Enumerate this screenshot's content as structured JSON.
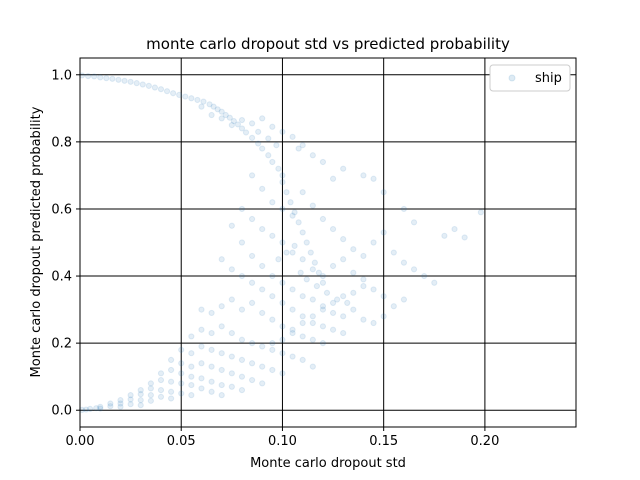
{
  "chart_data": {
    "type": "scatter",
    "title": "monte carlo dropout std vs predicted probability",
    "xlabel": "Monte carlo dropout std",
    "ylabel": "Monte carlo dropout predicted probability",
    "xlim": [
      0.0,
      0.245
    ],
    "ylim": [
      -0.05,
      1.05
    ],
    "xticks": [
      0.0,
      0.05,
      0.1,
      0.15,
      0.2
    ],
    "xtick_labels": [
      "0.00",
      "0.05",
      "0.10",
      "0.15",
      "0.20"
    ],
    "yticks": [
      0.0,
      0.2,
      0.4,
      0.6,
      0.8,
      1.0
    ],
    "ytick_labels": [
      "0.0",
      "0.2",
      "0.4",
      "0.6",
      "0.8",
      "1.0"
    ],
    "grid": true,
    "legend_position": "top-right",
    "series": [
      {
        "name": "ship",
        "color": "#1f77b4",
        "marker_alpha": 0.12,
        "points": [
          [
            0.001,
            0.998
          ],
          [
            0.004,
            0.996
          ],
          [
            0.007,
            0.995
          ],
          [
            0.01,
            0.992
          ],
          [
            0.013,
            0.99
          ],
          [
            0.016,
            0.988
          ],
          [
            0.019,
            0.985
          ],
          [
            0.022,
            0.982
          ],
          [
            0.025,
            0.979
          ],
          [
            0.028,
            0.975
          ],
          [
            0.031,
            0.971
          ],
          [
            0.034,
            0.967
          ],
          [
            0.037,
            0.962
          ],
          [
            0.04,
            0.957
          ],
          [
            0.043,
            0.951
          ],
          [
            0.046,
            0.945
          ],
          [
            0.049,
            0.94
          ],
          [
            0.052,
            0.935
          ],
          [
            0.055,
            0.93
          ],
          [
            0.058,
            0.925
          ],
          [
            0.061,
            0.92
          ],
          [
            0.064,
            0.912
          ],
          [
            0.066,
            0.905
          ],
          [
            0.068,
            0.897
          ],
          [
            0.07,
            0.89
          ],
          [
            0.072,
            0.88
          ],
          [
            0.074,
            0.872
          ],
          [
            0.076,
            0.862
          ],
          [
            0.078,
            0.852
          ],
          [
            0.08,
            0.84
          ],
          [
            0.082,
            0.828
          ],
          [
            0.085,
            0.812
          ],
          [
            0.088,
            0.795
          ],
          [
            0.09,
            0.78
          ],
          [
            0.093,
            0.76
          ],
          [
            0.095,
            0.74
          ],
          [
            0.098,
            0.72
          ],
          [
            0.1,
            0.7
          ],
          [
            0.06,
            0.905
          ],
          [
            0.065,
            0.88
          ],
          [
            0.07,
            0.87
          ],
          [
            0.075,
            0.85
          ],
          [
            0.08,
            0.865
          ],
          [
            0.085,
            0.855
          ],
          [
            0.09,
            0.87
          ],
          [
            0.095,
            0.845
          ],
          [
            0.1,
            0.83
          ],
          [
            0.105,
            0.815
          ],
          [
            0.11,
            0.79
          ],
          [
            0.088,
            0.83
          ],
          [
            0.093,
            0.81
          ],
          [
            0.097,
            0.79
          ],
          [
            0.1,
            0.68
          ],
          [
            0.102,
            0.65
          ],
          [
            0.104,
            0.62
          ],
          [
            0.106,
            0.59
          ],
          [
            0.108,
            0.56
          ],
          [
            0.11,
            0.53
          ],
          [
            0.112,
            0.5
          ],
          [
            0.114,
            0.47
          ],
          [
            0.116,
            0.44
          ],
          [
            0.118,
            0.41
          ],
          [
            0.12,
            0.38
          ],
          [
            0.085,
            0.7
          ],
          [
            0.09,
            0.66
          ],
          [
            0.095,
            0.62
          ],
          [
            0.1,
            0.6
          ],
          [
            0.105,
            0.58
          ],
          [
            0.11,
            0.65
          ],
          [
            0.115,
            0.61
          ],
          [
            0.12,
            0.57
          ],
          [
            0.125,
            0.54
          ],
          [
            0.13,
            0.51
          ],
          [
            0.135,
            0.48
          ],
          [
            0.14,
            0.46
          ],
          [
            0.145,
            0.5
          ],
          [
            0.15,
            0.53
          ],
          [
            0.155,
            0.47
          ],
          [
            0.16,
            0.44
          ],
          [
            0.165,
            0.42
          ],
          [
            0.17,
            0.4
          ],
          [
            0.175,
            0.38
          ],
          [
            0.18,
            0.52
          ],
          [
            0.185,
            0.54
          ],
          [
            0.19,
            0.515
          ],
          [
            0.198,
            0.59
          ],
          [
            0.08,
            0.6
          ],
          [
            0.085,
            0.57
          ],
          [
            0.09,
            0.54
          ],
          [
            0.095,
            0.52
          ],
          [
            0.1,
            0.5
          ],
          [
            0.105,
            0.47
          ],
          [
            0.11,
            0.45
          ],
          [
            0.115,
            0.42
          ],
          [
            0.12,
            0.4
          ],
          [
            0.125,
            0.43
          ],
          [
            0.13,
            0.45
          ],
          [
            0.135,
            0.41
          ],
          [
            0.14,
            0.39
          ],
          [
            0.145,
            0.36
          ],
          [
            0.15,
            0.34
          ],
          [
            0.155,
            0.31
          ],
          [
            0.16,
            0.33
          ],
          [
            0.075,
            0.55
          ],
          [
            0.08,
            0.5
          ],
          [
            0.085,
            0.46
          ],
          [
            0.09,
            0.43
          ],
          [
            0.095,
            0.4
          ],
          [
            0.1,
            0.38
          ],
          [
            0.105,
            0.36
          ],
          [
            0.11,
            0.34
          ],
          [
            0.115,
            0.33
          ],
          [
            0.12,
            0.31
          ],
          [
            0.125,
            0.29
          ],
          [
            0.13,
            0.28
          ],
          [
            0.135,
            0.3
          ],
          [
            0.14,
            0.27
          ],
          [
            0.145,
            0.26
          ],
          [
            0.15,
            0.28
          ],
          [
            0.07,
            0.45
          ],
          [
            0.075,
            0.42
          ],
          [
            0.08,
            0.4
          ],
          [
            0.085,
            0.38
          ],
          [
            0.09,
            0.36
          ],
          [
            0.095,
            0.34
          ],
          [
            0.1,
            0.32
          ],
          [
            0.105,
            0.3
          ],
          [
            0.11,
            0.28
          ],
          [
            0.115,
            0.26
          ],
          [
            0.12,
            0.25
          ],
          [
            0.125,
            0.24
          ],
          [
            0.13,
            0.23
          ],
          [
            0.06,
            0.3
          ],
          [
            0.065,
            0.29
          ],
          [
            0.07,
            0.31
          ],
          [
            0.075,
            0.33
          ],
          [
            0.08,
            0.3
          ],
          [
            0.085,
            0.32
          ],
          [
            0.09,
            0.29
          ],
          [
            0.095,
            0.27
          ],
          [
            0.1,
            0.25
          ],
          [
            0.105,
            0.23
          ],
          [
            0.11,
            0.22
          ],
          [
            0.115,
            0.21
          ],
          [
            0.12,
            0.2
          ],
          [
            0.055,
            0.22
          ],
          [
            0.06,
            0.24
          ],
          [
            0.065,
            0.23
          ],
          [
            0.07,
            0.25
          ],
          [
            0.075,
            0.23
          ],
          [
            0.08,
            0.21
          ],
          [
            0.085,
            0.2
          ],
          [
            0.09,
            0.19
          ],
          [
            0.095,
            0.18
          ],
          [
            0.1,
            0.17
          ],
          [
            0.105,
            0.16
          ],
          [
            0.11,
            0.15
          ],
          [
            0.115,
            0.13
          ],
          [
            0.05,
            0.18
          ],
          [
            0.055,
            0.17
          ],
          [
            0.06,
            0.19
          ],
          [
            0.065,
            0.18
          ],
          [
            0.07,
            0.17
          ],
          [
            0.075,
            0.16
          ],
          [
            0.08,
            0.15
          ],
          [
            0.085,
            0.14
          ],
          [
            0.09,
            0.13
          ],
          [
            0.095,
            0.12
          ],
          [
            0.1,
            0.11
          ],
          [
            0.045,
            0.15
          ],
          [
            0.05,
            0.14
          ],
          [
            0.055,
            0.13
          ],
          [
            0.06,
            0.14
          ],
          [
            0.065,
            0.13
          ],
          [
            0.07,
            0.12
          ],
          [
            0.075,
            0.11
          ],
          [
            0.08,
            0.1
          ],
          [
            0.085,
            0.09
          ],
          [
            0.09,
            0.08
          ],
          [
            0.04,
            0.11
          ],
          [
            0.045,
            0.12
          ],
          [
            0.05,
            0.11
          ],
          [
            0.055,
            0.1
          ],
          [
            0.06,
            0.095
          ],
          [
            0.065,
            0.085
          ],
          [
            0.07,
            0.075
          ],
          [
            0.075,
            0.07
          ],
          [
            0.08,
            0.06
          ],
          [
            0.035,
            0.08
          ],
          [
            0.04,
            0.09
          ],
          [
            0.045,
            0.085
          ],
          [
            0.05,
            0.08
          ],
          [
            0.055,
            0.075
          ],
          [
            0.06,
            0.065
          ],
          [
            0.065,
            0.055
          ],
          [
            0.07,
            0.045
          ],
          [
            0.03,
            0.06
          ],
          [
            0.035,
            0.065
          ],
          [
            0.04,
            0.06
          ],
          [
            0.045,
            0.055
          ],
          [
            0.05,
            0.05
          ],
          [
            0.055,
            0.045
          ],
          [
            0.025,
            0.045
          ],
          [
            0.03,
            0.048
          ],
          [
            0.035,
            0.045
          ],
          [
            0.04,
            0.04
          ],
          [
            0.045,
            0.035
          ],
          [
            0.02,
            0.03
          ],
          [
            0.025,
            0.032
          ],
          [
            0.03,
            0.03
          ],
          [
            0.035,
            0.028
          ],
          [
            0.015,
            0.02
          ],
          [
            0.02,
            0.02
          ],
          [
            0.025,
            0.018
          ],
          [
            0.03,
            0.015
          ],
          [
            0.01,
            0.01
          ],
          [
            0.015,
            0.012
          ],
          [
            0.02,
            0.01
          ],
          [
            0.005,
            0.004
          ],
          [
            0.008,
            0.006
          ],
          [
            0.01,
            0.005
          ],
          [
            0.003,
            0.002
          ],
          [
            0.001,
            0.001
          ],
          [
            0.16,
            0.6
          ],
          [
            0.165,
            0.56
          ],
          [
            0.15,
            0.65
          ],
          [
            0.145,
            0.69
          ],
          [
            0.14,
            0.7
          ],
          [
            0.13,
            0.72
          ],
          [
            0.125,
            0.69
          ],
          [
            0.12,
            0.74
          ],
          [
            0.115,
            0.76
          ],
          [
            0.108,
            0.78
          ],
          [
            0.095,
            0.2
          ],
          [
            0.1,
            0.21
          ],
          [
            0.105,
            0.24
          ],
          [
            0.11,
            0.26
          ],
          [
            0.115,
            0.28
          ],
          [
            0.12,
            0.3
          ],
          [
            0.125,
            0.32
          ],
          [
            0.13,
            0.34
          ],
          [
            0.135,
            0.35
          ],
          [
            0.14,
            0.37
          ],
          [
            0.098,
            0.45
          ],
          [
            0.102,
            0.47
          ],
          [
            0.106,
            0.49
          ],
          [
            0.109,
            0.41
          ],
          [
            0.112,
            0.39
          ],
          [
            0.117,
            0.37
          ],
          [
            0.122,
            0.35
          ],
          [
            0.127,
            0.33
          ],
          [
            0.132,
            0.32
          ]
        ]
      }
    ]
  }
}
